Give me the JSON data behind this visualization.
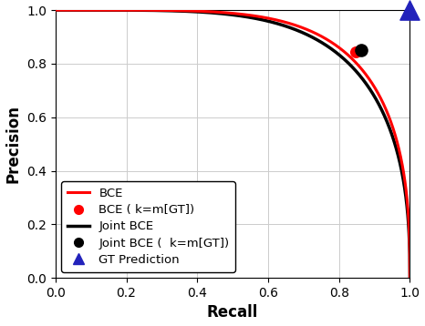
{
  "title": "",
  "xlabel": "Recall",
  "ylabel": "Precision",
  "xlim": [
    0,
    1
  ],
  "ylim": [
    0,
    1
  ],
  "xticks": [
    0,
    0.2,
    0.4,
    0.6,
    0.8,
    1.0
  ],
  "yticks": [
    0,
    0.2,
    0.4,
    0.6,
    0.8,
    1.0
  ],
  "bce_curve_color": "#FF0000",
  "bce_curve_lw": 2.2,
  "joint_bce_curve_color": "#000000",
  "joint_bce_curve_lw": 2.5,
  "bce_point": [
    0.848,
    0.843
  ],
  "bce_point_color": "#FF0000",
  "bce_point_size": 70,
  "joint_bce_point": [
    0.862,
    0.852
  ],
  "joint_bce_point_color": "#000000",
  "joint_bce_point_size": 90,
  "gt_point": [
    1.0,
    1.0
  ],
  "gt_point_color": "#2222BB",
  "gt_point_size": 130,
  "legend_labels": [
    "BCE",
    "BCE ( k=m[GT])",
    "Joint BCE",
    "Joint BCE (  k=m[GT])",
    "GT Prediction"
  ],
  "legend_loc": "lower left",
  "background_color": "#FFFFFF",
  "grid_color": "#CCCCCC",
  "grid_lw": 0.7,
  "figsize": [
    4.66,
    3.58
  ],
  "dpi": 100
}
